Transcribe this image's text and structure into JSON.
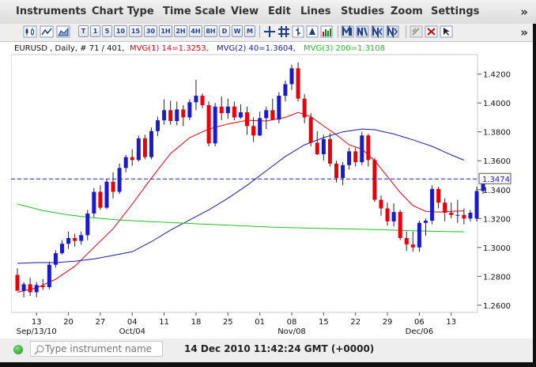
{
  "menubar": {
    "items": [
      "Instruments",
      "Chart Type",
      "Time Scale",
      "View",
      "Edit",
      "Lines",
      "Studies",
      "Zoom",
      "Settings"
    ],
    "more": "»"
  },
  "toolbar": {
    "period_buttons": [
      "T",
      "1",
      "5",
      "10",
      "15",
      "30",
      "1H",
      "2H",
      "4H",
      "8H",
      "D",
      "W",
      "M"
    ],
    "icons": [
      "candlestick-chart-icon",
      "line-chart-icon",
      "area-chart-icon",
      "crosshair-icon",
      "grid-icon",
      "bar-style-icon",
      "color-icon",
      "volume-icon",
      "zoom-in-icon",
      "zoom-out-icon",
      "scroll-left-icon",
      "scroll-right-icon",
      "detach-icon",
      "close-icon",
      "pointer-icon"
    ],
    "more": "»"
  },
  "chart_header": {
    "symbol": "EURUSD , Daily, # 71 / 401,",
    "mvg1": "MVG(1) 14=1.3253,",
    "mvg2": "MVG(2) 40=1.3604,",
    "mvg3": "MVG(3) 200=1.3108"
  },
  "colors": {
    "up": "#1a1acc",
    "down": "#e8000b",
    "mvg1": "#e8000b",
    "mvg2": "#1a1aa8",
    "mvg3": "#22c022",
    "price_line": "#1a1acc"
  },
  "chart_data": {
    "type": "candlestick",
    "title": "EURUSD , Daily, # 71 / 401",
    "ylim": [
      1.255,
      1.4335
    ],
    "y_ticks": [
      "1.4200",
      "1.4000",
      "1.3800",
      "1.3600",
      "1.3400",
      "1.3200",
      "1.3000",
      "1.2800",
      "1.2600"
    ],
    "y_tick_values": [
      1.42,
      1.4,
      1.38,
      1.36,
      1.34,
      1.32,
      1.3,
      1.28,
      1.26
    ],
    "x_tick_labels": [
      "13",
      "20",
      "27",
      "04",
      "11",
      "18",
      "25",
      "01",
      "08",
      "15",
      "22",
      "29",
      "06",
      "13"
    ],
    "x_tick_bars": [
      3,
      8,
      13,
      18,
      23,
      28,
      33,
      38,
      43,
      48,
      53,
      58,
      63,
      68
    ],
    "x_month_labels": [
      {
        "label": "Sep/13/10",
        "bar": 3
      },
      {
        "label": "Oct/04",
        "bar": 18
      },
      {
        "label": "Nov/08",
        "bar": 43
      },
      {
        "label": "Dec/06",
        "bar": 63
      }
    ],
    "current_price": "1.3474",
    "current_price_value": 1.3474,
    "candles": [
      {
        "o": 1.281,
        "h": 1.2855,
        "l": 1.2705,
        "c": 1.27
      },
      {
        "o": 1.27,
        "h": 1.276,
        "l": 1.2655,
        "c": 1.2745
      },
      {
        "o": 1.2745,
        "h": 1.279,
        "l": 1.2665,
        "c": 1.269
      },
      {
        "o": 1.269,
        "h": 1.276,
        "l": 1.2655,
        "c": 1.274
      },
      {
        "o": 1.2735,
        "h": 1.278,
        "l": 1.2705,
        "c": 1.2725
      },
      {
        "o": 1.2725,
        "h": 1.29,
        "l": 1.271,
        "c": 1.288
      },
      {
        "o": 1.288,
        "h": 1.298,
        "l": 1.286,
        "c": 1.296
      },
      {
        "o": 1.296,
        "h": 1.305,
        "l": 1.295,
        "c": 1.3025
      },
      {
        "o": 1.3025,
        "h": 1.311,
        "l": 1.299,
        "c": 1.3065
      },
      {
        "o": 1.3065,
        "h": 1.3095,
        "l": 1.3005,
        "c": 1.3045
      },
      {
        "o": 1.3045,
        "h": 1.311,
        "l": 1.302,
        "c": 1.3085
      },
      {
        "o": 1.3085,
        "h": 1.326,
        "l": 1.305,
        "c": 1.3235
      },
      {
        "o": 1.3235,
        "h": 1.341,
        "l": 1.321,
        "c": 1.3385
      },
      {
        "o": 1.3385,
        "h": 1.343,
        "l": 1.326,
        "c": 1.3275
      },
      {
        "o": 1.3275,
        "h": 1.3475,
        "l": 1.3265,
        "c": 1.3455
      },
      {
        "o": 1.3455,
        "h": 1.352,
        "l": 1.334,
        "c": 1.3385
      },
      {
        "o": 1.3385,
        "h": 1.358,
        "l": 1.337,
        "c": 1.355
      },
      {
        "o": 1.355,
        "h": 1.364,
        "l": 1.352,
        "c": 1.3625
      },
      {
        "o": 1.3625,
        "h": 1.368,
        "l": 1.3565,
        "c": 1.3605
      },
      {
        "o": 1.3605,
        "h": 1.3775,
        "l": 1.3595,
        "c": 1.3755
      },
      {
        "o": 1.3755,
        "h": 1.378,
        "l": 1.361,
        "c": 1.3625
      },
      {
        "o": 1.3625,
        "h": 1.383,
        "l": 1.361,
        "c": 1.3805
      },
      {
        "o": 1.3805,
        "h": 1.3905,
        "l": 1.377,
        "c": 1.388
      },
      {
        "o": 1.388,
        "h": 1.4025,
        "l": 1.385,
        "c": 1.395
      },
      {
        "o": 1.395,
        "h": 1.4015,
        "l": 1.385,
        "c": 1.3875
      },
      {
        "o": 1.3875,
        "h": 1.401,
        "l": 1.3845,
        "c": 1.3955
      },
      {
        "o": 1.3955,
        "h": 1.3985,
        "l": 1.384,
        "c": 1.39
      },
      {
        "o": 1.39,
        "h": 1.4025,
        "l": 1.388,
        "c": 1.4005
      },
      {
        "o": 1.4005,
        "h": 1.416,
        "l": 1.395,
        "c": 1.405
      },
      {
        "o": 1.405,
        "h": 1.4065,
        "l": 1.3965,
        "c": 1.3985
      },
      {
        "o": 1.3985,
        "h": 1.401,
        "l": 1.37,
        "c": 1.372
      },
      {
        "o": 1.372,
        "h": 1.4,
        "l": 1.37,
        "c": 1.3975
      },
      {
        "o": 1.3975,
        "h": 1.4045,
        "l": 1.388,
        "c": 1.393
      },
      {
        "o": 1.393,
        "h": 1.403,
        "l": 1.389,
        "c": 1.3975
      },
      {
        "o": 1.3975,
        "h": 1.401,
        "l": 1.388,
        "c": 1.39
      },
      {
        "o": 1.39,
        "h": 1.399,
        "l": 1.389,
        "c": 1.3935
      },
      {
        "o": 1.3935,
        "h": 1.3975,
        "l": 1.378,
        "c": 1.384
      },
      {
        "o": 1.384,
        "h": 1.39,
        "l": 1.373,
        "c": 1.3775
      },
      {
        "o": 1.3775,
        "h": 1.394,
        "l": 1.377,
        "c": 1.3895
      },
      {
        "o": 1.3895,
        "h": 1.3975,
        "l": 1.382,
        "c": 1.395
      },
      {
        "o": 1.395,
        "h": 1.403,
        "l": 1.388,
        "c": 1.3885
      },
      {
        "o": 1.3885,
        "h": 1.4075,
        "l": 1.386,
        "c": 1.405
      },
      {
        "o": 1.405,
        "h": 1.4155,
        "l": 1.401,
        "c": 1.413
      },
      {
        "o": 1.413,
        "h": 1.4265,
        "l": 1.409,
        "c": 1.424
      },
      {
        "o": 1.424,
        "h": 1.428,
        "l": 1.401,
        "c": 1.403
      },
      {
        "o": 1.403,
        "h": 1.406,
        "l": 1.386,
        "c": 1.39
      },
      {
        "o": 1.39,
        "h": 1.393,
        "l": 1.37,
        "c": 1.3725
      },
      {
        "o": 1.3725,
        "h": 1.3805,
        "l": 1.364,
        "c": 1.3645
      },
      {
        "o": 1.3645,
        "h": 1.378,
        "l": 1.36,
        "c": 1.375
      },
      {
        "o": 1.375,
        "h": 1.379,
        "l": 1.356,
        "c": 1.358
      },
      {
        "o": 1.358,
        "h": 1.36,
        "l": 1.345,
        "c": 1.348
      },
      {
        "o": 1.348,
        "h": 1.359,
        "l": 1.343,
        "c": 1.357
      },
      {
        "o": 1.357,
        "h": 1.369,
        "l": 1.354,
        "c": 1.3665
      },
      {
        "o": 1.3665,
        "h": 1.369,
        "l": 1.356,
        "c": 1.359
      },
      {
        "o": 1.359,
        "h": 1.38,
        "l": 1.357,
        "c": 1.3775
      },
      {
        "o": 1.3775,
        "h": 1.3785,
        "l": 1.356,
        "c": 1.3605
      },
      {
        "o": 1.3605,
        "h": 1.362,
        "l": 1.3315,
        "c": 1.333
      },
      {
        "o": 1.333,
        "h": 1.336,
        "l": 1.322,
        "c": 1.327
      },
      {
        "o": 1.327,
        "h": 1.331,
        "l": 1.315,
        "c": 1.318
      },
      {
        "o": 1.318,
        "h": 1.3305,
        "l": 1.3145,
        "c": 1.3245
      },
      {
        "o": 1.3245,
        "h": 1.326,
        "l": 1.305,
        "c": 1.3065
      },
      {
        "o": 1.3065,
        "h": 1.311,
        "l": 1.2975,
        "c": 1.302
      },
      {
        "o": 1.302,
        "h": 1.311,
        "l": 1.297,
        "c": 1.3
      },
      {
        "o": 1.3,
        "h": 1.3185,
        "l": 1.297,
        "c": 1.317
      },
      {
        "o": 1.317,
        "h": 1.32,
        "l": 1.308,
        "c": 1.3185
      },
      {
        "o": 1.3185,
        "h": 1.343,
        "l": 1.316,
        "c": 1.3405
      },
      {
        "o": 1.3405,
        "h": 1.342,
        "l": 1.327,
        "c": 1.331
      },
      {
        "o": 1.331,
        "h": 1.334,
        "l": 1.318,
        "c": 1.324
      },
      {
        "o": 1.324,
        "h": 1.331,
        "l": 1.32,
        "c": 1.3225
      },
      {
        "o": 1.3225,
        "h": 1.333,
        "l": 1.317,
        "c": 1.3225
      },
      {
        "o": 1.3225,
        "h": 1.327,
        "l": 1.316,
        "c": 1.32
      },
      {
        "o": 1.32,
        "h": 1.326,
        "l": 1.318,
        "c": 1.324
      },
      {
        "o": 1.32,
        "h": 1.342,
        "l": 1.318,
        "c": 1.339
      },
      {
        "o": 1.339,
        "h": 1.35,
        "l": 1.337,
        "c": 1.3474
      }
    ],
    "series": [
      {
        "name": "MVG(1) 14",
        "values": [
          [
            0,
            1.269
          ],
          [
            3,
            1.272
          ],
          [
            6,
            1.278
          ],
          [
            9,
            1.287
          ],
          [
            12,
            1.3
          ],
          [
            15,
            1.313
          ],
          [
            18,
            1.33
          ],
          [
            21,
            1.348
          ],
          [
            24,
            1.365
          ],
          [
            27,
            1.376
          ],
          [
            30,
            1.382
          ],
          [
            33,
            1.3855
          ],
          [
            36,
            1.388
          ],
          [
            39,
            1.3875
          ],
          [
            42,
            1.39
          ],
          [
            44,
            1.3935
          ],
          [
            46,
            1.3905
          ],
          [
            48,
            1.384
          ],
          [
            50,
            1.378
          ],
          [
            52,
            1.371
          ],
          [
            54,
            1.368
          ],
          [
            56,
            1.36
          ],
          [
            58,
            1.349
          ],
          [
            60,
            1.338
          ],
          [
            62,
            1.329
          ],
          [
            64,
            1.325
          ],
          [
            66,
            1.3245
          ],
          [
            68,
            1.325
          ],
          [
            70,
            1.3253
          ]
        ]
      },
      {
        "name": "MVG(2) 40",
        "values": [
          [
            0,
            1.289
          ],
          [
            3,
            1.2895
          ],
          [
            6,
            1.2895
          ],
          [
            9,
            1.2905
          ],
          [
            12,
            1.292
          ],
          [
            15,
            1.2945
          ],
          [
            18,
            1.297
          ],
          [
            21,
            1.304
          ],
          [
            24,
            1.312
          ],
          [
            27,
            1.319
          ],
          [
            30,
            1.326
          ],
          [
            33,
            1.334
          ],
          [
            36,
            1.343
          ],
          [
            39,
            1.353
          ],
          [
            42,
            1.363
          ],
          [
            45,
            1.371
          ],
          [
            48,
            1.376
          ],
          [
            51,
            1.38
          ],
          [
            54,
            1.382
          ],
          [
            56,
            1.3815
          ],
          [
            59,
            1.3785
          ],
          [
            62,
            1.3745
          ],
          [
            65,
            1.37
          ],
          [
            68,
            1.364
          ],
          [
            70,
            1.3604
          ]
        ]
      },
      {
        "name": "MVG(3) 200",
        "values": [
          [
            0,
            1.33
          ],
          [
            4,
            1.3255
          ],
          [
            8,
            1.3225
          ],
          [
            12,
            1.3205
          ],
          [
            16,
            1.319
          ],
          [
            20,
            1.318
          ],
          [
            25,
            1.317
          ],
          [
            30,
            1.316
          ],
          [
            35,
            1.315
          ],
          [
            40,
            1.314
          ],
          [
            45,
            1.3135
          ],
          [
            50,
            1.313
          ],
          [
            55,
            1.3125
          ],
          [
            60,
            1.3118
          ],
          [
            65,
            1.3112
          ],
          [
            70,
            1.3108
          ]
        ]
      }
    ]
  },
  "footer": {
    "search_placeholder": "Type instrument name",
    "datetime": "14 Dec 2010 11:42:24  GMT (+0000)"
  }
}
